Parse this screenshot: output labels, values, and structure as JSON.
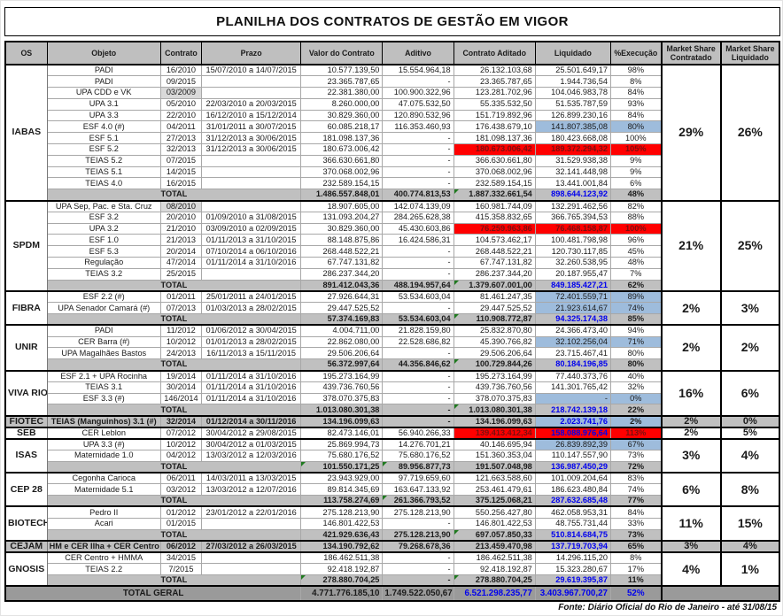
{
  "title": "PLANILHA DOS CONTRATOS DE GESTÃO EM VIGOR",
  "source_note": "Fonte: Diário Oficial do Rio de Janeiro - até 31/08/15",
  "columns": [
    "OS",
    "Objeto",
    "Contrato",
    "Prazo",
    "Valor do Contrato",
    "Aditivo",
    "Contrato Aditado",
    "Liquidado",
    "%Execução",
    "Market Share\nContratado",
    "Market Share\nLiquidado"
  ],
  "colors": {
    "highlight_red": "#FF0000",
    "highlight_blue": "#9EBCDC",
    "value_blue": "#0000EE",
    "header_gray": "#BFBFBF",
    "total_gray": "#C0C0C0",
    "grand_total_gray": "#9A9A9A",
    "shaded_cell_gray": "#D9D9D9",
    "error_mark_green": "#1F7A1F"
  },
  "groups": [
    {
      "os": "IABAS",
      "ms": [
        "29%",
        "26%"
      ],
      "rows": [
        {
          "objeto": "PADI",
          "contrato": "16/2010",
          "prazo": "15/07/2010 a 14/07/2015",
          "valor": "10.577.139,50",
          "aditivo": "15.554.964,18",
          "aditado": "26.132.103,68",
          "liquidado": "25.501.649,17",
          "pct": "98%"
        },
        {
          "objeto": "PADI",
          "contrato": "09/2015",
          "prazo": "",
          "valor": "23.365.787,65",
          "aditivo": "-",
          "aditado": "23.365.787,65",
          "liquidado": "1.944.736,54",
          "pct": "8%"
        },
        {
          "objeto": "UPA CDD e VK",
          "contrato": "03/2009",
          "prazo": "",
          "valor": "22.381.380,00",
          "aditivo": "100.900.322,96",
          "aditado": "123.281.702,96",
          "liquidado": "104.046.983,78",
          "pct": "84%",
          "shade": true
        },
        {
          "objeto": "UPA 3.1",
          "contrato": "05/2010",
          "prazo": "22/03/2010 a 20/03/2015",
          "valor": "8.260.000,00",
          "aditivo": "47.075.532,50",
          "aditado": "55.335.532,50",
          "liquidado": "51.535.787,59",
          "pct": "93%"
        },
        {
          "objeto": "UPA 3.3",
          "contrato": "22/2010",
          "prazo": "16/12/2010 a 15/12/2014",
          "valor": "30.829.360,00",
          "aditivo": "120.890.532,96",
          "aditado": "151.719.892,96",
          "liquidado": "126.899.230,16",
          "pct": "84%"
        },
        {
          "objeto": "ESF 4.0 (#)",
          "contrato": "04/2011",
          "prazo": "31/01/2011 a 30/07/2015",
          "valor": "60.085.218,17",
          "aditivo": "116.353.460,93",
          "aditado": "176.438.679,10",
          "liquidado": "141.807.385,08",
          "pct": "80%",
          "hl": true
        },
        {
          "objeto": "ESF 5.1",
          "contrato": "27/2013",
          "prazo": "31/12/2013 a 30/06/2015",
          "valor": "181.098.137,36",
          "aditivo": "-",
          "aditado": "181.098.137,36",
          "liquidado": "180.423.668,08",
          "pct": "100%"
        },
        {
          "objeto": "ESF 5.2",
          "contrato": "32/2013",
          "prazo": "31/12/2013 a 30/06/2015",
          "valor": "180.673.006,42",
          "aditivo": "-",
          "aditado": "180.673.006,42",
          "liquidado": "189.372.294,32",
          "pct": "105%",
          "red": true
        },
        {
          "objeto": "TEIAS 5.2",
          "contrato": "07/2015",
          "prazo": "",
          "valor": "366.630.661,80",
          "aditivo": "-",
          "aditado": "366.630.661,80",
          "liquidado": "31.529.938,38",
          "pct": "9%"
        },
        {
          "objeto": "TEIAS 5.1",
          "contrato": "14/2015",
          "prazo": "",
          "valor": "370.068.002,96",
          "aditivo": "-",
          "aditado": "370.068.002,96",
          "liquidado": "32.141.448,98",
          "pct": "9%"
        },
        {
          "objeto": "TEIAS 4.0",
          "contrato": "16/2015",
          "prazo": "",
          "valor": "232.589.154,15",
          "aditivo": "-",
          "aditado": "232.589.154,15",
          "liquidado": "13.441.001,84",
          "pct": "6%"
        },
        {
          "total": true,
          "label": "TOTAL",
          "valor": "1.486.557.848,01",
          "aditivo": "400.774.813,53",
          "aditado": "1.887.332.661,54",
          "liquidado": "898.644.123,92",
          "pct": "48%",
          "marks": [
            "aditado"
          ]
        }
      ]
    },
    {
      "os": "SPDM",
      "ms": [
        "21%",
        "25%"
      ],
      "rows": [
        {
          "objeto": "UPA Sep, Pac. e Sta. Cruz",
          "contrato": "08/2010",
          "prazo": "",
          "valor": "18.907.605,00",
          "aditivo": "142.074.139,09",
          "aditado": "160.981.744,09",
          "liquidado": "132.291.462,56",
          "pct": "82%",
          "shade": true
        },
        {
          "objeto": "ESF 3.2",
          "contrato": "20/2010",
          "prazo": "01/09/2010 a 31/08/2015",
          "valor": "131.093.204,27",
          "aditivo": "284.265.628,38",
          "aditado": "415.358.832,65",
          "liquidado": "366.765.394,53",
          "pct": "88%"
        },
        {
          "objeto": "UPA 3.2",
          "contrato": "21/2010",
          "prazo": "03/09/2010 a 02/09/2015",
          "valor": "30.829.360,00",
          "aditivo": "45.430.603,86",
          "aditado": "76.259.963,86",
          "liquidado": "76.468.158,87",
          "pct": "100%",
          "red": true
        },
        {
          "objeto": "ESF 1.0",
          "contrato": "21/2013",
          "prazo": "01/11/2013 a 31/10/2015",
          "valor": "88.148.875,86",
          "aditivo": "16.424.586,31",
          "aditado": "104.573.462,17",
          "liquidado": "100.481.798,98",
          "pct": "96%"
        },
        {
          "objeto": "ESF 5.3",
          "contrato": "20/2014",
          "prazo": "07/10/2014 a 06/10/2016",
          "valor": "268.448.522,21",
          "aditivo": "-",
          "aditado": "268.448.522,21",
          "liquidado": "120.730.117,85",
          "pct": "45%"
        },
        {
          "objeto": "Regulação",
          "contrato": "47/2014",
          "prazo": "01/11/2014 a 31/10/2016",
          "valor": "67.747.131,82",
          "aditivo": "-",
          "aditado": "67.747.131,82",
          "liquidado": "32.260.538,95",
          "pct": "48%"
        },
        {
          "objeto": "TEIAS 3.2",
          "contrato": "25/2015",
          "prazo": "",
          "valor": "286.237.344,20",
          "aditivo": "-",
          "aditado": "286.237.344,20",
          "liquidado": "20.187.955,47",
          "pct": "7%"
        },
        {
          "total": true,
          "label": "TOTAL",
          "valor": "891.412.043,36",
          "aditivo": "488.194.957,64",
          "aditado": "1.379.607.001,00",
          "liquidado": "849.185.427,21",
          "pct": "62%",
          "marks": [
            "aditado"
          ]
        }
      ]
    },
    {
      "os": "FIBRA",
      "ms": [
        "2%",
        "3%"
      ],
      "rows": [
        {
          "objeto": "ESF 2.2 (#)",
          "contrato": "01/2011",
          "prazo": "25/01/2011 a 24/01/2015",
          "valor": "27.926.644,31",
          "aditivo": "53.534.603,04",
          "aditado": "81.461.247,35",
          "liquidado": "72.401.559,71",
          "pct": "89%",
          "hl": true
        },
        {
          "objeto": "UPA Senador Camará (#)",
          "contrato": "07/2013",
          "prazo": "01/03/2013 a 28/02/2015",
          "valor": "29.447.525,52",
          "aditivo": "-",
          "aditado": "29.447.525,52",
          "liquidado": "21.923.614,67",
          "pct": "74%",
          "hl": true
        },
        {
          "total": true,
          "label": "TOTAL",
          "valor": "57.374.169,83",
          "aditivo": "53.534.603,04",
          "aditado": "110.908.772,87",
          "liquidado": "94.325.174,38",
          "pct": "85%",
          "marks": [
            "aditado"
          ]
        }
      ]
    },
    {
      "os": "UNIR",
      "ms": [
        "2%",
        "2%"
      ],
      "rows": [
        {
          "objeto": "PADI",
          "contrato": "11/2012",
          "prazo": "01/06/2012 a 30/04/2015",
          "valor": "4.004.711,00",
          "aditivo": "21.828.159,80",
          "aditado": "25.832.870,80",
          "liquidado": "24.366.473,40",
          "pct": "94%"
        },
        {
          "objeto": "CER Barra (#)",
          "contrato": "10/2012",
          "prazo": "01/01/2013 a 28/02/2015",
          "valor": "22.862.080,00",
          "aditivo": "22.528.686,82",
          "aditado": "45.390.766,82",
          "liquidado": "32.102.256,04",
          "pct": "71%",
          "hl": true
        },
        {
          "objeto": "UPA Magalhães Bastos",
          "contrato": "24/2013",
          "prazo": "16/11/2013 a 15/11/2015",
          "valor": "29.506.206,64",
          "aditivo": "-",
          "aditado": "29.506.206,64",
          "liquidado": "23.715.467,41",
          "pct": "80%"
        },
        {
          "total": true,
          "label": "TOTAL",
          "valor": "56.372.997,64",
          "aditivo": "44.356.846,62",
          "aditado": "100.729.844,26",
          "liquidado": "80.184.196,85",
          "pct": "80%",
          "marks": [
            "aditado"
          ]
        }
      ]
    },
    {
      "os": "VIVA RIO",
      "ms": [
        "16%",
        "6%"
      ],
      "rows": [
        {
          "objeto": "ESF 2.1 + UPA Rocinha",
          "contrato": "19/2014",
          "prazo": "01/11/2014 a 31/10/2016",
          "valor": "195.273.164,99",
          "aditivo": "-",
          "aditado": "195.273.164,99",
          "liquidado": "77.440.373,76",
          "pct": "40%"
        },
        {
          "objeto": "TEIAS 3.1",
          "contrato": "30/2014",
          "prazo": "01/11/2014 a 31/10/2016",
          "valor": "439.736.760,56",
          "aditivo": "-",
          "aditado": "439.736.760,56",
          "liquidado": "141.301.765,42",
          "pct": "32%"
        },
        {
          "objeto": "ESF 3.3 (#)",
          "contrato": "146/2014",
          "prazo": "01/11/2014 a 31/10/2016",
          "valor": "378.070.375,83",
          "aditivo": "-",
          "aditado": "378.070.375,83",
          "liquidado": "-",
          "pct": "0%",
          "hl": true
        },
        {
          "total": true,
          "label": "TOTAL",
          "valor": "1.013.080.301,38",
          "aditivo": "-",
          "aditado": "1.013.080.301,38",
          "liquidado": "218.742.139,18",
          "pct": "22%",
          "marks": [
            "aditado"
          ]
        }
      ]
    },
    {
      "os": "FIOTEC",
      "ms": [
        "2%",
        "0%"
      ],
      "rows": [
        {
          "objeto": "TEIAS (Manguinhos) 3.1 (#)",
          "contrato": "32/2014",
          "prazo": "01/12/2014 a 30/11/2016",
          "valor": "134.196.099,63",
          "aditivo": "-",
          "aditado": "134.196.099,63",
          "liquidado": "2.023.741,76",
          "pct": "2%",
          "gray": true,
          "hl": true,
          "liq_blue": true
        }
      ]
    },
    {
      "os": "SEB",
      "ms": [
        "2%",
        "5%"
      ],
      "rows": [
        {
          "objeto": "CER Leblon",
          "contrato": "07/2012",
          "prazo": "30/04/2012 a 29/08/2015",
          "valor": "82.473.146,01",
          "aditivo": "56.940.266,33",
          "aditado": "139.413.412,34",
          "liquidado": "158.088.976,64",
          "pct": "113%",
          "red": true,
          "liq_blue": true
        }
      ]
    },
    {
      "os": "ISAS",
      "ms": [
        "3%",
        "4%"
      ],
      "rows": [
        {
          "objeto": "UPA 3.3 (#)",
          "contrato": "10/2012",
          "prazo": "30/04/2012 a 01/03/2015",
          "valor": "25.869.994,73",
          "aditivo": "14.276.701,21",
          "aditado": "40.146.695,94",
          "liquidado": "26.839.892,39",
          "pct": "67%",
          "hl": true
        },
        {
          "objeto": "Maternidade 1.0",
          "contrato": "04/2012",
          "prazo": "13/03/2012 a 12/03/2016",
          "valor": "75.680.176,52",
          "aditivo": "75.680.176,52",
          "aditado": "151.360.353,04",
          "liquidado": "110.147.557,90",
          "pct": "73%"
        },
        {
          "total": true,
          "label": "TOTAL",
          "valor": "101.550.171,25",
          "aditivo": "89.956.877,73",
          "aditado": "191.507.048,98",
          "liquidado": "136.987.450,29",
          "pct": "72%",
          "marks": [
            "valor",
            "aditivo"
          ]
        }
      ]
    },
    {
      "os": "CEP 28",
      "ms": [
        "6%",
        "8%"
      ],
      "rows": [
        {
          "objeto": "Cegonha Carioca",
          "contrato": "06/2011",
          "prazo": "14/03/2011 a 13/03/2015",
          "valor": "23.943.929,00",
          "aditivo": "97.719.659,60",
          "aditado": "121.663.588,60",
          "liquidado": "101.009.204,64",
          "pct": "83%"
        },
        {
          "objeto": "Maternidade 5.1",
          "contrato": "03/2012",
          "prazo": "13/03/2012 a 12/07/2016",
          "valor": "89.814.345,69",
          "aditivo": "163.647.133,92",
          "aditado": "253.461.479,61",
          "liquidado": "186.623.480,84",
          "pct": "74%"
        },
        {
          "total": true,
          "label": "TOTAL",
          "valor": "113.758.274,69",
          "aditivo": "261.366.793,52",
          "aditado": "375.125.068,21",
          "liquidado": "287.632.685,48",
          "pct": "77%",
          "marks": [
            "aditivo"
          ]
        }
      ]
    },
    {
      "os": "BIOTECH",
      "ms": [
        "11%",
        "15%"
      ],
      "rows": [
        {
          "objeto": "Pedro II",
          "contrato": "01/2012",
          "prazo": "23/01/2012 a 22/01/2016",
          "valor": "275.128.213,90",
          "aditivo": "275.128.213,90",
          "aditado": "550.256.427,80",
          "liquidado": "462.058.953,31",
          "pct": "84%"
        },
        {
          "objeto": "Acari",
          "contrato": "01/2015",
          "prazo": "",
          "valor": "146.801.422,53",
          "aditivo": "-",
          "aditado": "146.801.422,53",
          "liquidado": "48.755.731,44",
          "pct": "33%"
        },
        {
          "total": true,
          "label": "TOTAL",
          "valor": "421.929.636,43",
          "aditivo": "275.128.213,90",
          "aditado": "697.057.850,33",
          "liquidado": "510.814.684,75",
          "pct": "73%",
          "marks": [
            "aditado"
          ]
        }
      ]
    },
    {
      "os": "CEJAM",
      "ms": [
        "3%",
        "4%"
      ],
      "rows": [
        {
          "objeto": "HM e CER Ilha + CER Centro",
          "contrato": "06/2012",
          "prazo": "27/03/2012 a 26/03/2015",
          "valor": "134.190.792,62",
          "aditivo": "79.268.678,36",
          "aditado": "213.459.470,98",
          "liquidado": "137.719.703,94",
          "pct": "65%",
          "gray": true,
          "liq_blue": true
        }
      ]
    },
    {
      "os": "GNOSIS",
      "ms": [
        "4%",
        "1%"
      ],
      "rows": [
        {
          "objeto": "CER Centro + HMMA",
          "contrato": "34/2015",
          "prazo": "",
          "valor": "186.462.511,38",
          "aditivo": "-",
          "aditado": "186.462.511,38",
          "liquidado": "14.296.115,20",
          "pct": "8%"
        },
        {
          "objeto": "TEIAS 2.2",
          "contrato": "7/2015",
          "prazo": "",
          "valor": "92.418.192,87",
          "aditivo": "-",
          "aditado": "92.418.192,87",
          "liquidado": "15.323.280,67",
          "pct": "17%"
        },
        {
          "total": true,
          "label": "TOTAL",
          "valor": "278.880.704,25",
          "aditivo": "-",
          "aditado": "278.880.704,25",
          "liquidado": "29.619.395,87",
          "pct": "11%",
          "marks": [
            "valor",
            "aditado"
          ]
        }
      ]
    }
  ],
  "grand_total": {
    "label": "TOTAL GERAL",
    "valor": "4.771.776.185,10",
    "aditivo": "1.749.522.050,67",
    "aditado": "6.521.298.235,77",
    "liquidado": "3.403.967.700,27",
    "pct": "52%"
  }
}
